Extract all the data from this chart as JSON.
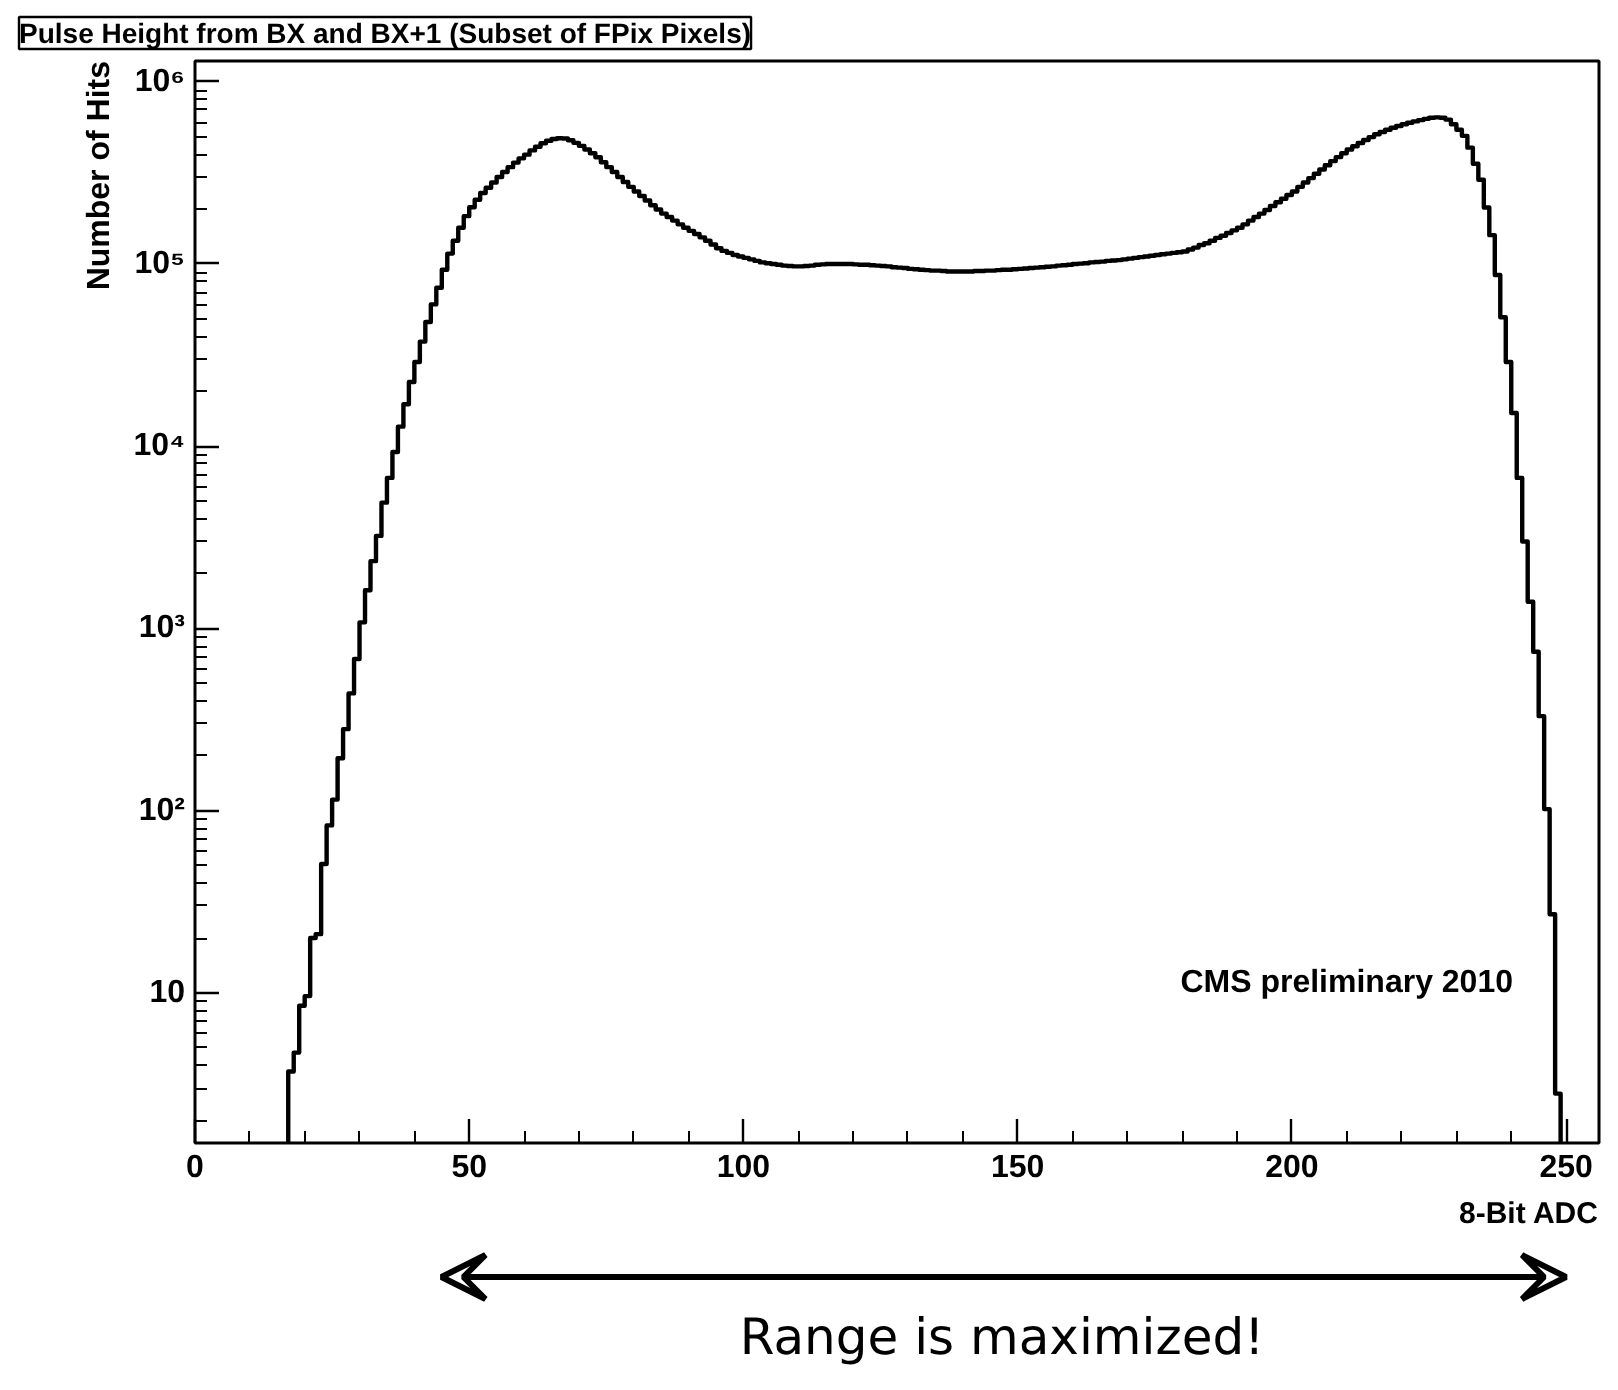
{
  "chart_data": {
    "type": "histogram",
    "title": "Pulse Height from BX and BX+1 (Subset of FPix Pixels)",
    "xlabel": "8-Bit ADC",
    "ylabel": "Number of Hits",
    "annotations": [
      "CMS preliminary 2010",
      "Range is maximized!"
    ],
    "color": "#000000",
    "log": "y",
    "xlim": [
      0,
      256
    ],
    "ylim": [
      1.5,
      1300000
    ],
    "xticks": [
      0,
      50,
      100,
      150,
      200,
      250
    ],
    "yticks": [
      {
        "value": 10,
        "label": "10"
      },
      {
        "value": 100,
        "label": "10²"
      },
      {
        "value": 1000,
        "label": "10³"
      },
      {
        "value": 10000,
        "label": "10⁴"
      },
      {
        "value": 100000,
        "label": "10⁵"
      },
      {
        "value": 1000000,
        "label": "10⁶"
      }
    ],
    "bins": [
      17,
      18,
      19,
      20,
      21,
      22,
      23,
      24,
      25,
      26,
      27,
      28,
      29,
      30,
      31,
      32,
      33,
      34,
      35,
      36,
      37,
      38,
      39,
      40,
      41,
      42,
      43,
      44,
      45,
      46,
      47,
      48,
      49,
      50,
      51,
      52,
      53,
      54,
      55,
      56,
      57,
      58,
      59,
      60,
      61,
      62,
      63,
      64,
      65,
      66,
      67,
      68,
      69,
      70,
      71,
      72,
      73,
      74,
      75,
      76,
      77,
      78,
      79,
      80,
      81,
      82,
      83,
      84,
      85,
      86,
      87,
      88,
      89,
      90,
      91,
      92,
      93,
      94,
      95,
      96,
      97,
      98,
      99,
      100,
      101,
      102,
      103,
      104,
      105,
      106,
      107,
      108,
      109,
      110,
      111,
      112,
      113,
      114,
      115,
      116,
      117,
      118,
      119,
      120,
      121,
      122,
      123,
      124,
      125,
      126,
      127,
      128,
      129,
      130,
      131,
      132,
      133,
      134,
      135,
      136,
      137,
      138,
      139,
      140,
      141,
      142,
      143,
      144,
      145,
      146,
      147,
      148,
      149,
      150,
      151,
      152,
      153,
      154,
      155,
      156,
      157,
      158,
      159,
      160,
      161,
      162,
      163,
      164,
      165,
      166,
      167,
      168,
      169,
      170,
      171,
      172,
      173,
      174,
      175,
      176,
      177,
      178,
      179,
      180,
      181,
      182,
      183,
      184,
      185,
      186,
      187,
      188,
      189,
      190,
      191,
      192,
      193,
      194,
      195,
      196,
      197,
      198,
      199,
      200,
      201,
      202,
      203,
      204,
      205,
      206,
      207,
      208,
      209,
      210,
      211,
      212,
      213,
      214,
      215,
      216,
      217,
      218,
      219,
      220,
      221,
      222,
      223,
      224,
      225,
      226,
      227,
      228,
      229,
      230,
      231,
      232,
      233,
      234,
      235,
      236,
      237,
      238,
      239,
      240,
      241,
      242,
      243,
      244,
      245,
      246,
      247,
      248,
      249
    ],
    "values": [
      3.7,
      4.7,
      8.5,
      9.6,
      20,
      21,
      51,
      83,
      115,
      194,
      280,
      440,
      680,
      1080,
      1620,
      2340,
      3220,
      4900,
      6700,
      9300,
      12800,
      17000,
      22500,
      29000,
      37500,
      48000,
      60000,
      74000,
      93000,
      114000,
      134000,
      158000,
      183000,
      205000,
      225000,
      245000,
      262000,
      280000,
      300000,
      320000,
      340000,
      360000,
      380000,
      398000,
      420000,
      440000,
      460000,
      475000,
      485000,
      490000,
      488000,
      478000,
      462000,
      445000,
      425000,
      405000,
      385000,
      362000,
      340000,
      320000,
      300000,
      282000,
      265000,
      250000,
      236000,
      223000,
      210000,
      199000,
      189000,
      181000,
      173000,
      165000,
      158000,
      152000,
      146000,
      140000,
      134000,
      128000,
      122000,
      118000,
      115000,
      112000,
      110000,
      108000,
      106000,
      104000,
      102000,
      101000,
      100000,
      99000,
      98000,
      97500,
      97000,
      97000,
      97500,
      98000,
      99000,
      99500,
      100000,
      100000,
      100000,
      100000,
      100000,
      99500,
      99000,
      99000,
      98500,
      98000,
      97500,
      97000,
      96000,
      95500,
      95000,
      94000,
      93500,
      93000,
      92500,
      92000,
      92000,
      91500,
      91000,
      91000,
      91000,
      91000,
      91000,
      91500,
      91500,
      92000,
      92000,
      92500,
      93000,
      93000,
      93500,
      94000,
      94500,
      95000,
      95500,
      96000,
      96500,
      97000,
      98000,
      98500,
      99000,
      100000,
      100500,
      101000,
      102000,
      102500,
      103000,
      104000,
      104500,
      105000,
      106000,
      107000,
      108000,
      109000,
      110000,
      111000,
      112000,
      113000,
      114000,
      115000,
      116000,
      117000,
      120000,
      123000,
      127000,
      130000,
      134000,
      139000,
      143000,
      148000,
      153000,
      158000,
      165000,
      173000,
      181000,
      189000,
      198000,
      208000,
      218000,
      228000,
      239000,
      250000,
      265000,
      280000,
      296000,
      313000,
      330000,
      348000,
      367000,
      386000,
      405000,
      425000,
      443000,
      461000,
      479000,
      497000,
      515000,
      530000,
      545000,
      559000,
      572000,
      585000,
      596000,
      606000,
      616000,
      626000,
      635000,
      638000,
      635000,
      620000,
      585000,
      545000,
      505000,
      435000,
      355000,
      290000,
      204000,
      144000,
      87000,
      51000,
      29000,
      15200,
      6700,
      3000,
      1400,
      745,
      330,
      102,
      27,
      2.8
    ]
  }
}
